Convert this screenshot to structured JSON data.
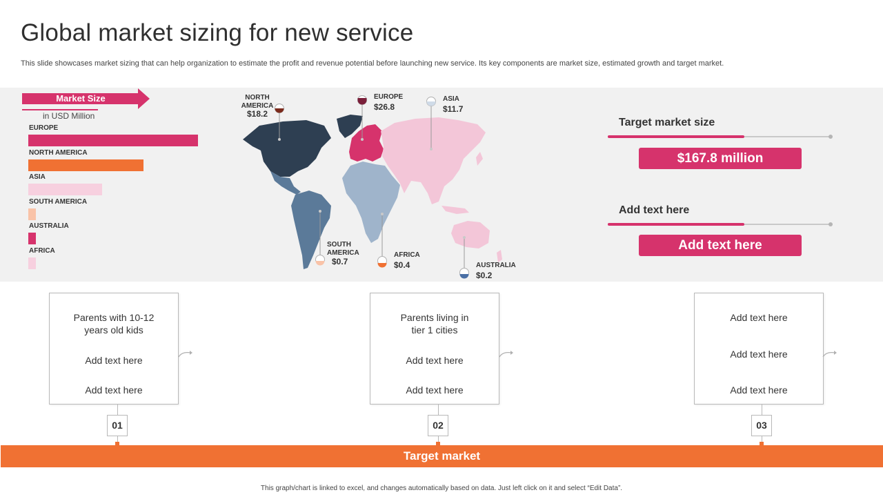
{
  "title": "Global market sizing for new service",
  "subtitle": "This slide showcases market sizing that can help organization to estimate the profit and revenue potential before launching new service. Its key components are market size, estimated growth and target market.",
  "market_size": {
    "title": "Market Size",
    "unit": "in USD Million"
  },
  "chart_data": {
    "type": "bar",
    "orientation": "horizontal",
    "title": "Market Size",
    "ylabel": "in USD Million",
    "categories": [
      "EUROPE",
      "NORTH AMERICA",
      "ASIA",
      "SOUTH AMERICA",
      "AUSTRALIA",
      "AFRICA"
    ],
    "values": [
      26.8,
      18.2,
      11.7,
      0.7,
      0.2,
      0.4
    ],
    "colors": [
      "#d6336c",
      "#f07133",
      "#f7d0df",
      "#f9c3a8",
      "#d6336c",
      "#f7d0df"
    ]
  },
  "map_callouts": [
    {
      "region_line1": "NORTH",
      "region_line2": "AMERICA",
      "value": "$18.2"
    },
    {
      "region_line1": "EUROPE",
      "region_line2": "",
      "value": "$26.8"
    },
    {
      "region_line1": "ASIA",
      "region_line2": "",
      "value": "$11.7"
    },
    {
      "region_line1": "SOUTH",
      "region_line2": "AMERICA",
      "value": "$0.7"
    },
    {
      "region_line1": "AFRICA",
      "region_line2": "",
      "value": "$0.4"
    },
    {
      "region_line1": "AUSTRALIA",
      "region_line2": "",
      "value": "$0.2"
    }
  ],
  "right_panel": {
    "label1": "Target market size",
    "value1": "$167.8 million",
    "label2": "Add text here",
    "value2": "Add text here"
  },
  "cards": [
    {
      "line1": "Parents with 10-12",
      "line2": "years old kids",
      "line3": "Add text here",
      "line4": "Add text here",
      "number": "01"
    },
    {
      "line1": "Parents living  in",
      "line2": "tier 1 cities",
      "line3": "Add text here",
      "line4": "Add text here",
      "number": "02"
    },
    {
      "line1": "Add text here",
      "line2": "",
      "line3": "Add text here",
      "line4": "Add text here",
      "number": "03"
    }
  ],
  "target_market": "Target market",
  "footer": "This graph/chart is linked to excel, and changes automatically based on data. Just left click on it and select “Edit Data”.",
  "colors": {
    "pink": "#d6336c",
    "orange": "#f07133",
    "navy": "#2e3f52",
    "steel": "#5b7a99",
    "light_blue": "#9fb4cb",
    "light_pink": "#f3c6d8"
  }
}
